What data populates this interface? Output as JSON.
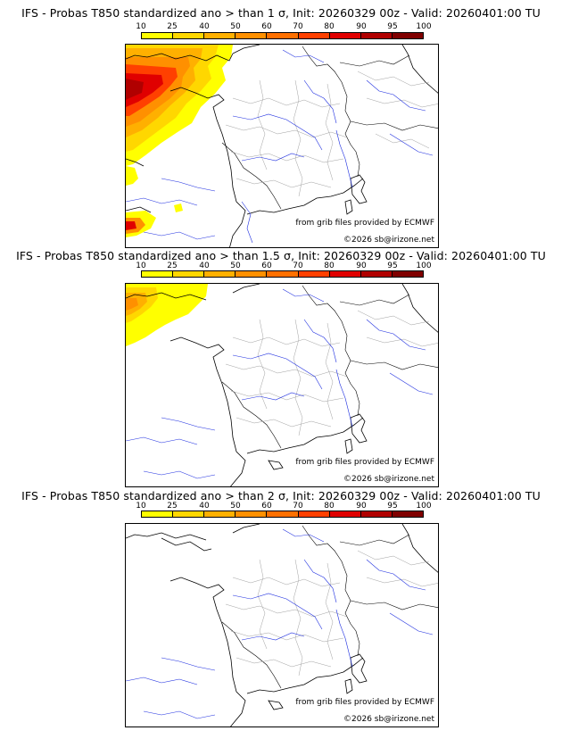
{
  "legend": {
    "ticks": [
      "10",
      "25",
      "40",
      "50",
      "60",
      "70",
      "80",
      "90",
      "95",
      "100"
    ],
    "colors": [
      "#ffff00",
      "#ffd700",
      "#ffb000",
      "#ff9000",
      "#ff7000",
      "#ff4000",
      "#e00000",
      "#b00000",
      "#800000"
    ]
  },
  "panels": [
    {
      "title": "IFS - Probas T850  standardized ano > than 1 σ, Init: 20260329 00z - Valid: 20260401:00 TU",
      "source": "from grib files provided by ECMWF",
      "copyright": "©2026 sb@irizone.net"
    },
    {
      "title": "IFS - Probas T850  standardized ano > than 1.5 σ, Init: 20260329 00z - Valid: 20260401:00 TU",
      "source": "from grib files provided by ECMWF",
      "copyright": "©2026 sb@irizone.net"
    },
    {
      "title": "IFS - Probas T850  standardized ano > than 2 σ, Init: 20260329 00z - Valid: 20260401:00 TU",
      "source": "from grib files provided by ECMWF",
      "copyright": "©2026 sb@irizone.net"
    }
  ]
}
